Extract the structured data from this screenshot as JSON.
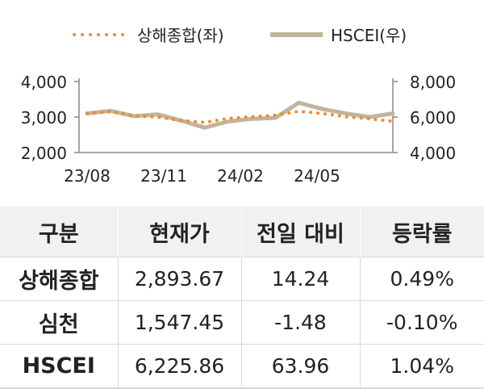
{
  "chart_data": {
    "type": "line",
    "legend_placement": "top",
    "x_ticks": [
      "23/08",
      "23/11",
      "24/02",
      "24/05"
    ],
    "left_axis": {
      "ylim": [
        2000,
        4000
      ],
      "ticks": [
        "2,000",
        "3,000",
        "4,000"
      ]
    },
    "right_axis": {
      "ylim": [
        4000,
        8000
      ],
      "ticks": [
        "4,000",
        "6,000",
        "8,000"
      ]
    },
    "grid": false,
    "series": [
      {
        "name": "상해종합(좌)",
        "axis": "left",
        "style": "dotted",
        "color": "#f08a2b",
        "x": [
          "23/08",
          "23/09",
          "23/10",
          "23/11",
          "23/12",
          "24/01",
          "24/02",
          "24/03",
          "24/04",
          "24/05",
          "24/06",
          "24/07",
          "24/08",
          "24/09"
        ],
        "values": [
          3110,
          3150,
          3030,
          3000,
          2900,
          2850,
          2960,
          3010,
          3050,
          3160,
          3100,
          3010,
          2950,
          2880
        ]
      },
      {
        "name": "HSCEI(우)",
        "axis": "right",
        "style": "solid",
        "color": "#c2b49a",
        "x": [
          "23/08",
          "23/09",
          "23/10",
          "23/11",
          "23/12",
          "24/01",
          "24/02",
          "24/03",
          "24/04",
          "24/05",
          "24/06",
          "24/07",
          "24/08",
          "24/09"
        ],
        "values": [
          6200,
          6350,
          6050,
          6150,
          5800,
          5400,
          5750,
          5900,
          5950,
          6800,
          6450,
          6200,
          6000,
          6200
        ]
      }
    ]
  },
  "table": {
    "headers": [
      "구분",
      "현재가",
      "전일 대비",
      "등락률"
    ],
    "rows": [
      {
        "name": "상해종합",
        "price": "2,893.67",
        "change": "14.24",
        "rate": "0.49%"
      },
      {
        "name": "심천",
        "price": "1,547.45",
        "change": "-1.48",
        "rate": "-0.10%"
      },
      {
        "name": "HSCEI",
        "price": "6,225.86",
        "change": "63.96",
        "rate": "1.04%"
      }
    ]
  }
}
